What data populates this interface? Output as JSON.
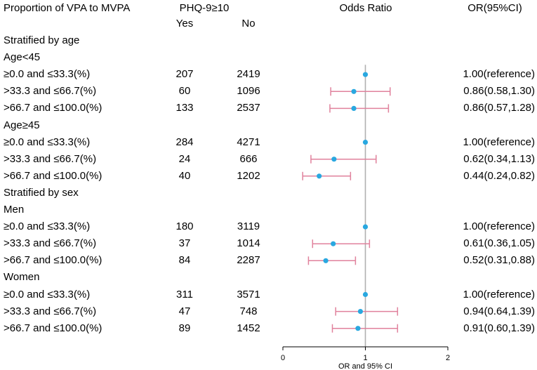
{
  "headers": {
    "proportion": "Proportion of VPA to MVPA",
    "phq": "PHQ-9≥10",
    "yes": "Yes",
    "no": "No",
    "odds_ratio": "Odds Ratio",
    "or_ci": "OR(95%CI)"
  },
  "rows": [
    {
      "kind": "section",
      "label": "Stratified by age"
    },
    {
      "kind": "group",
      "label": "Age<45"
    },
    {
      "kind": "data",
      "label": "≥0.0 and ≤33.3(%)",
      "yes": "207",
      "no": "2419",
      "or": 1.0,
      "lo": 1.0,
      "hi": 1.0,
      "text": "1.00(reference)"
    },
    {
      "kind": "data",
      "label": ">33.3 and ≤66.7(%)",
      "yes": "60",
      "no": "1096",
      "or": 0.86,
      "lo": 0.58,
      "hi": 1.3,
      "text": "0.86(0.58,1.30)"
    },
    {
      "kind": "data",
      "label": ">66.7 and ≤100.0(%)",
      "yes": "133",
      "no": "2537",
      "or": 0.86,
      "lo": 0.57,
      "hi": 1.28,
      "text": "0.86(0.57,1.28)"
    },
    {
      "kind": "group",
      "label": "Age≥45"
    },
    {
      "kind": "data",
      "label": "≥0.0 and ≤33.3(%)",
      "yes": "284",
      "no": "4271",
      "or": 1.0,
      "lo": 1.0,
      "hi": 1.0,
      "text": "1.00(reference)"
    },
    {
      "kind": "data",
      "label": ">33.3 and ≤66.7(%)",
      "yes": "24",
      "no": "666",
      "or": 0.62,
      "lo": 0.34,
      "hi": 1.13,
      "text": "0.62(0.34,1.13)"
    },
    {
      "kind": "data",
      "label": ">66.7 and ≤100.0(%)",
      "yes": "40",
      "no": "1202",
      "or": 0.44,
      "lo": 0.24,
      "hi": 0.82,
      "text": "0.44(0.24,0.82)"
    },
    {
      "kind": "section",
      "label": "Stratified by sex"
    },
    {
      "kind": "group",
      "label": "Men"
    },
    {
      "kind": "data",
      "label": "≥0.0 and ≤33.3(%)",
      "yes": "180",
      "no": "3119",
      "or": 1.0,
      "lo": 1.0,
      "hi": 1.0,
      "text": "1.00(reference)"
    },
    {
      "kind": "data",
      "label": ">33.3 and ≤66.7(%)",
      "yes": "37",
      "no": "1014",
      "or": 0.61,
      "lo": 0.36,
      "hi": 1.05,
      "text": "0.61(0.36,1.05)"
    },
    {
      "kind": "data",
      "label": ">66.7 and ≤100.0(%)",
      "yes": "84",
      "no": "2287",
      "or": 0.52,
      "lo": 0.31,
      "hi": 0.88,
      "text": "0.52(0.31,0.88)"
    },
    {
      "kind": "group",
      "label": "Women"
    },
    {
      "kind": "data",
      "label": "≥0.0 and ≤33.3(%)",
      "yes": "311",
      "no": "3571",
      "or": 1.0,
      "lo": 1.0,
      "hi": 1.0,
      "text": "1.00(reference)"
    },
    {
      "kind": "data",
      "label": ">33.3 and ≤66.7(%)",
      "yes": "47",
      "no": "748",
      "or": 0.94,
      "lo": 0.64,
      "hi": 1.39,
      "text": "0.94(0.64,1.39)"
    },
    {
      "kind": "data",
      "label": ">66.7 and ≤100.0(%)",
      "yes": "89",
      "no": "1452",
      "or": 0.91,
      "lo": 0.6,
      "hi": 1.39,
      "text": "0.91(0.60,1.39)"
    }
  ],
  "chart_data": {
    "type": "forest",
    "title": "Odds Ratio",
    "xlabel": "OR and 95% CI",
    "xlim": [
      0,
      2
    ],
    "xticks": [
      0,
      1,
      2
    ],
    "reference_line": 1,
    "point_color": "#29a8e0",
    "ci_color": "#e0819c",
    "ref_line_color": "#b0b0b0"
  }
}
